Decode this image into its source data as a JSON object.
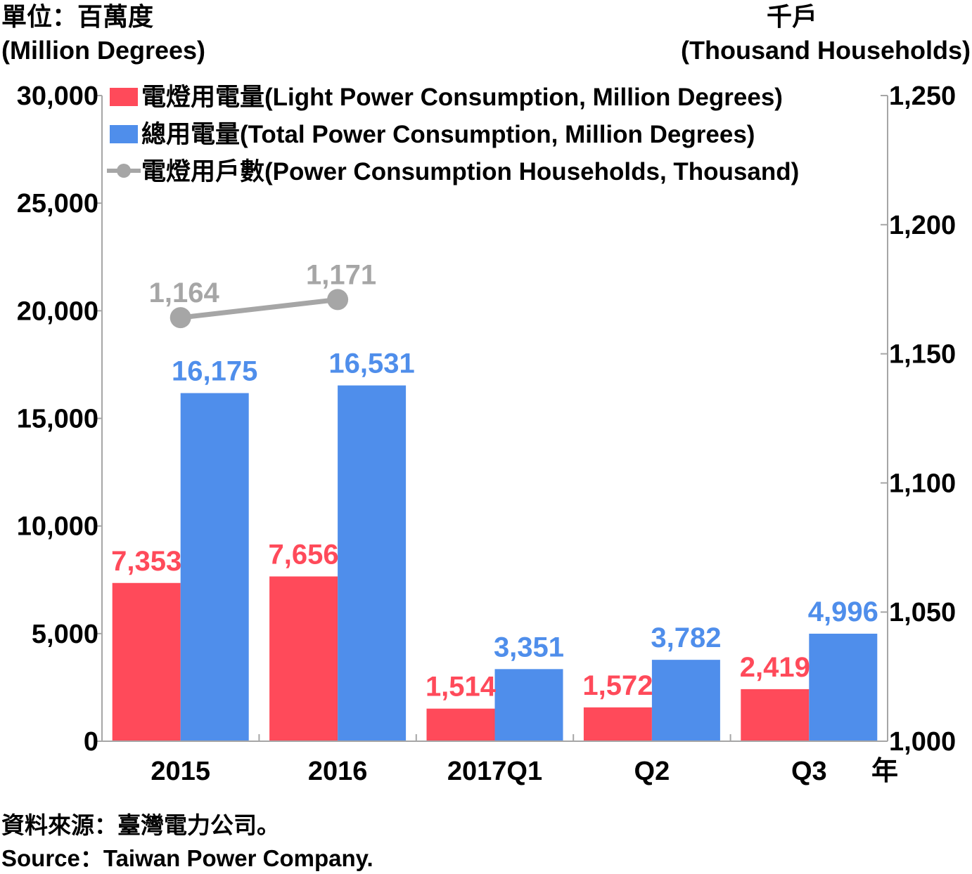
{
  "units": {
    "left_zh": "單位：百萬度",
    "left_en": "(Million Degrees)",
    "right_zh": "千戶",
    "right_en": "(Thousand Households)",
    "x_suffix": "年"
  },
  "source": {
    "zh": "資料來源：臺灣電力公司。",
    "en": "Source：Taiwan Power Company."
  },
  "chart_data": {
    "type": "bar",
    "categories": [
      "2015",
      "2016",
      "2017Q1",
      "Q2",
      "Q3"
    ],
    "series": [
      {
        "name": "電燈用電量(Light Power Consumption, Million Degrees)",
        "type": "bar",
        "axis": "left",
        "color": "#ff4a5a",
        "values": [
          7353,
          7656,
          1514,
          1572,
          2419
        ],
        "labels": [
          "7,353",
          "7,656",
          "1,514",
          "1,572",
          "2,419"
        ]
      },
      {
        "name": "總用電量(Total Power Consumption, Million Degrees)",
        "type": "bar",
        "axis": "left",
        "color": "#4f8eeb",
        "values": [
          16175,
          16531,
          3351,
          3782,
          4996
        ],
        "labels": [
          "16,175",
          "16,531",
          "3,351",
          "3,782",
          "4,996"
        ]
      },
      {
        "name": "電燈用戶數(Power Consumption Households, Thousand)",
        "type": "line",
        "axis": "right",
        "color": "#a6a6a6",
        "values": [
          1164,
          1171,
          null,
          null,
          null
        ],
        "labels": [
          "1,164",
          "1,171",
          "",
          "",
          ""
        ]
      }
    ],
    "y_left": {
      "min": 0,
      "max": 30000,
      "ticks": [
        0,
        5000,
        10000,
        15000,
        20000,
        25000,
        30000
      ],
      "tick_labels": [
        "0",
        "5,000",
        "10,000",
        "15,000",
        "20,000",
        "25,000",
        "30,000"
      ]
    },
    "y_right": {
      "min": 1000,
      "max": 1250,
      "ticks": [
        1000,
        1050,
        1100,
        1150,
        1200,
        1250
      ],
      "tick_labels": [
        "1,000",
        "1,050",
        "1,100",
        "1,150",
        "1,200",
        "1,250"
      ]
    },
    "legend_position": "top-left",
    "grid": false
  }
}
